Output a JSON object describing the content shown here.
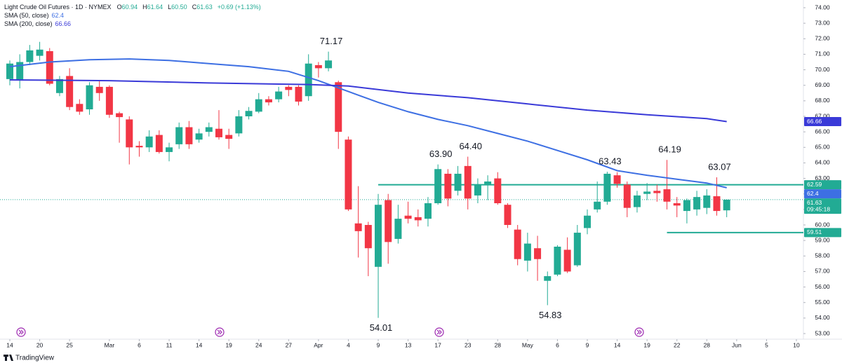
{
  "chart_data": {
    "type": "candlestick",
    "header": {
      "symbol": "Light Crude Oil Futures · 1D · NYMEX",
      "ohlc": [
        {
          "key": "O",
          "value": "60.94"
        },
        {
          "key": "H",
          "value": "61.64"
        },
        {
          "key": "L",
          "value": "60.50"
        },
        {
          "key": "C",
          "value": "61.63"
        }
      ],
      "change": "+0.69 (+1.13%)"
    },
    "up_color": "#22ab94",
    "down_color": "#f23645",
    "open": [
      69.4,
      69.3,
      70.5,
      70.9,
      71.2,
      68.5,
      69.6,
      67.8,
      67.45,
      68.9,
      68.9,
      67.2,
      66.8,
      65.1,
      65.0,
      65.8,
      64.7,
      65.2,
      66.3,
      65.5,
      66.0,
      66.2,
      65.8,
      65.9,
      67.0,
      67.3,
      68.1,
      68.1,
      68.9,
      68.9,
      68.3,
      70.3,
      70.1,
      69.2,
      65.5,
      60.1,
      60.0,
      57.3,
      61.6,
      59.1,
      60.6,
      60.5,
      60.4,
      61.4,
      63.3,
      62.2,
      63.8,
      61.9,
      62.6,
      63.0,
      61.3,
      59.7,
      57.7,
      58.5,
      56.4,
      56.8,
      58.4,
      57.4,
      59.8,
      61.0,
      61.5,
      63.2,
      62.6,
      61.15,
      62.0,
      62.2,
      62.3,
      61.4,
      60.9,
      61.0,
      61.1,
      61.85,
      60.94
    ],
    "high": [
      70.6,
      71.0,
      71.6,
      71.8,
      71.4,
      69.6,
      70.1,
      68.1,
      69.2,
      69.3,
      69.0,
      67.3,
      67.0,
      65.4,
      66.1,
      66.1,
      65.3,
      66.6,
      66.7,
      66.2,
      66.6,
      67.4,
      66.2,
      67.4,
      67.6,
      68.5,
      68.3,
      68.9,
      69.0,
      69.0,
      71.0,
      70.5,
      71.17,
      69.3,
      65.7,
      62.5,
      60.2,
      62.0,
      62.0,
      61.3,
      61.5,
      61.0,
      61.8,
      63.9,
      63.6,
      63.8,
      64.4,
      63.0,
      63.2,
      63.4,
      61.4,
      60.0,
      59.5,
      59.3,
      57.0,
      58.7,
      59.2,
      60.0,
      61.0,
      62.8,
      63.43,
      63.4,
      62.8,
      62.2,
      62.7,
      62.6,
      64.19,
      61.8,
      61.7,
      62.2,
      62.3,
      63.07,
      61.64
    ],
    "low": [
      69.0,
      68.8,
      70.3,
      70.6,
      69.0,
      68.3,
      67.4,
      67.1,
      67.1,
      68.0,
      66.9,
      65.3,
      63.9,
      64.4,
      64.7,
      64.6,
      64.1,
      64.9,
      64.9,
      65.3,
      65.7,
      65.5,
      64.9,
      65.7,
      66.8,
      67.2,
      67.7,
      67.9,
      68.3,
      67.7,
      68.0,
      69.5,
      69.9,
      64.9,
      60.9,
      57.9,
      56.7,
      54.01,
      57.5,
      58.8,
      60.1,
      59.9,
      59.9,
      61.3,
      61.2,
      61.9,
      61.0,
      61.4,
      61.6,
      61.3,
      59.8,
      57.4,
      57.0,
      56.4,
      54.83,
      56.7,
      56.9,
      57.3,
      59.4,
      60.8,
      61.3,
      62.4,
      60.5,
      60.8,
      61.6,
      61.5,
      61.0,
      60.5,
      60.1,
      60.6,
      60.7,
      60.6,
      60.5
    ],
    "close": [
      70.4,
      70.5,
      71.25,
      71.3,
      69.1,
      69.4,
      67.6,
      67.3,
      69.0,
      68.5,
      67.1,
      66.95,
      65.0,
      65.0,
      65.7,
      64.7,
      65.0,
      66.3,
      65.2,
      65.9,
      66.3,
      65.65,
      65.55,
      67.0,
      67.35,
      68.1,
      67.9,
      68.6,
      68.7,
      67.95,
      70.4,
      70.1,
      70.6,
      66.0,
      61.0,
      59.6,
      58.5,
      61.3,
      58.9,
      60.4,
      60.4,
      60.3,
      61.4,
      63.6,
      61.7,
      63.3,
      61.7,
      62.6,
      62.8,
      61.4,
      60.0,
      57.8,
      58.8,
      57.8,
      56.7,
      58.6,
      57.0,
      59.5,
      60.6,
      61.5,
      63.3,
      62.65,
      61.1,
      61.9,
      62.15,
      62.05,
      61.5,
      61.25,
      61.6,
      61.8,
      61.9,
      60.9,
      61.63
    ],
    "overlays": [
      {
        "name": "SMA (50, close)",
        "color": "#3d6fe3",
        "x": [
          0,
          4,
          8,
          12,
          16,
          20,
          24,
          28,
          31,
          34,
          37,
          40,
          43,
          46,
          49,
          52,
          55,
          58,
          61,
          64,
          67,
          70,
          72
        ],
        "values": [
          70.2,
          70.5,
          70.65,
          70.7,
          70.6,
          70.4,
          70.2,
          69.9,
          69.3,
          68.6,
          67.9,
          67.3,
          66.8,
          66.4,
          65.9,
          65.4,
          64.8,
          64.2,
          63.5,
          63.2,
          62.95,
          62.7,
          62.4
        ]
      },
      {
        "name": "SMA (200, close)",
        "color": "#3a3ad8",
        "x": [
          0,
          10,
          20,
          30,
          34,
          40,
          46,
          52,
          58,
          64,
          70,
          72
        ],
        "values": [
          69.35,
          69.3,
          69.15,
          69.05,
          68.95,
          68.5,
          68.2,
          67.8,
          67.4,
          67.1,
          66.85,
          66.66
        ]
      }
    ],
    "annotations": {
      "values": [
        71.17,
        63.9,
        54.01,
        64.4,
        54.83,
        63.43,
        64.19,
        63.07
      ],
      "value_labels": [
        "71.17",
        "63.90",
        "54.01",
        "64.40",
        "54.83",
        "63.43",
        "64.19",
        "63.07"
      ]
    },
    "price_lines": [
      {
        "value": 66.66,
        "color": "#3a3ad8"
      },
      {
        "value": 62.59,
        "color": "#22ab94"
      },
      {
        "value": 62.4,
        "color": "#3d6fe3"
      },
      {
        "value": 61.63,
        "color": "#22ab94",
        "countdown": "09:45:18"
      },
      {
        "value": 59.51,
        "color": "#22ab94"
      }
    ],
    "ylim": [
      53,
      74
    ],
    "yticks": [
      {
        "value": 53,
        "label": "53.00"
      },
      {
        "value": 54,
        "label": "54.00"
      },
      {
        "value": 55,
        "label": "55.00"
      },
      {
        "value": 56,
        "label": "56.00"
      },
      {
        "value": 57,
        "label": "57.00"
      },
      {
        "value": 58,
        "label": "58.00"
      },
      {
        "value": 59,
        "label": "59.00"
      },
      {
        "value": 60,
        "label": "60.00"
      },
      {
        "value": 61,
        "label": "61.00"
      },
      {
        "value": 62,
        "label": "62.00"
      },
      {
        "value": 63,
        "label": "63.00"
      },
      {
        "value": 64,
        "label": "64.00"
      },
      {
        "value": 65,
        "label": "65.00"
      },
      {
        "value": 66,
        "label": "66.00"
      },
      {
        "value": 67,
        "label": "67.00"
      },
      {
        "value": 68,
        "label": "68.00"
      },
      {
        "value": 69,
        "label": "69.00"
      },
      {
        "value": 70,
        "label": "70.00"
      },
      {
        "value": 71,
        "label": "71.00"
      },
      {
        "value": 72,
        "label": "72.00"
      },
      {
        "value": 73,
        "label": "73.00"
      },
      {
        "value": 74,
        "label": "74.00"
      }
    ],
    "xticks": [
      {
        "value": 0,
        "label": "14"
      },
      {
        "value": 3,
        "label": "20"
      },
      {
        "value": 6,
        "label": "25"
      },
      {
        "value": 10,
        "label": "Mar"
      },
      {
        "value": 13,
        "label": "6"
      },
      {
        "value": 16,
        "label": "11"
      },
      {
        "value": 19,
        "label": "14"
      },
      {
        "value": 22,
        "label": "19"
      },
      {
        "value": 25,
        "label": "24"
      },
      {
        "value": 28,
        "label": "27"
      },
      {
        "value": 31,
        "label": "Apr"
      },
      {
        "value": 34,
        "label": "4"
      },
      {
        "value": 37,
        "label": "9"
      },
      {
        "value": 40,
        "label": "13"
      },
      {
        "value": 43,
        "label": "17"
      },
      {
        "value": 46,
        "label": "23"
      },
      {
        "value": 49,
        "label": "28"
      },
      {
        "value": 52,
        "label": "May"
      },
      {
        "value": 55,
        "label": "6"
      },
      {
        "value": 58,
        "label": "9"
      },
      {
        "value": 61,
        "label": "14"
      },
      {
        "value": 64,
        "label": "19"
      },
      {
        "value": 67,
        "label": "22"
      },
      {
        "value": 70,
        "label": "28"
      },
      {
        "value": 73,
        "label": "Jun"
      },
      {
        "value": 76,
        "label": "5"
      },
      {
        "value": 79,
        "label": "10"
      }
    ],
    "branding": "TradingView"
  }
}
